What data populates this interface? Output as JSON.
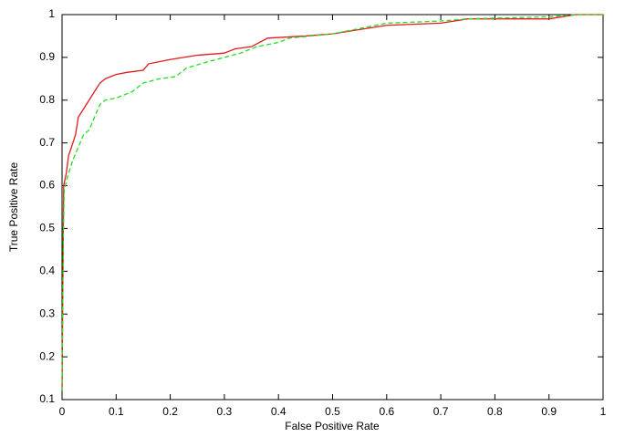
{
  "chart_data": {
    "type": "line",
    "xlabel": "False Positive Rate",
    "ylabel": "True Positive Rate",
    "xlim": [
      0,
      1
    ],
    "ylim": [
      0.1,
      1
    ],
    "xticks": [
      0,
      0.1,
      0.2,
      0.3,
      0.4,
      0.5,
      0.6,
      0.7,
      0.8,
      0.9,
      1
    ],
    "yticks": [
      0.1,
      0.2,
      0.3,
      0.4,
      0.5,
      0.6,
      0.7,
      0.8,
      0.9,
      1
    ],
    "grid": false,
    "series": [
      {
        "color": "#e41a1c",
        "dashed": false,
        "x": [
          0,
          0.002,
          0.003,
          0.008,
          0.012,
          0.02,
          0.025,
          0.03,
          0.04,
          0.05,
          0.06,
          0.07,
          0.08,
          0.1,
          0.12,
          0.15,
          0.16,
          0.2,
          0.25,
          0.3,
          0.32,
          0.35,
          0.38,
          0.45,
          0.5,
          0.55,
          0.6,
          0.7,
          0.75,
          0.9,
          0.95,
          1
        ],
        "values": [
          0.12,
          0.45,
          0.6,
          0.63,
          0.67,
          0.7,
          0.72,
          0.76,
          0.78,
          0.8,
          0.82,
          0.84,
          0.85,
          0.86,
          0.865,
          0.87,
          0.885,
          0.895,
          0.905,
          0.91,
          0.92,
          0.925,
          0.945,
          0.95,
          0.955,
          0.965,
          0.975,
          0.98,
          0.99,
          0.99,
          1,
          1
        ]
      },
      {
        "color": "#22dd22",
        "dashed": true,
        "x": [
          0,
          0.002,
          0.004,
          0.01,
          0.02,
          0.03,
          0.04,
          0.05,
          0.06,
          0.07,
          0.08,
          0.1,
          0.13,
          0.15,
          0.18,
          0.21,
          0.23,
          0.27,
          0.3,
          0.33,
          0.36,
          0.4,
          0.42,
          0.5,
          0.6,
          0.7,
          0.75,
          0.9,
          0.95,
          1
        ],
        "values": [
          0.12,
          0.45,
          0.59,
          0.62,
          0.66,
          0.69,
          0.72,
          0.73,
          0.76,
          0.79,
          0.8,
          0.805,
          0.82,
          0.84,
          0.85,
          0.855,
          0.875,
          0.89,
          0.9,
          0.91,
          0.925,
          0.935,
          0.945,
          0.955,
          0.98,
          0.985,
          0.99,
          0.995,
          1,
          1
        ]
      }
    ]
  }
}
